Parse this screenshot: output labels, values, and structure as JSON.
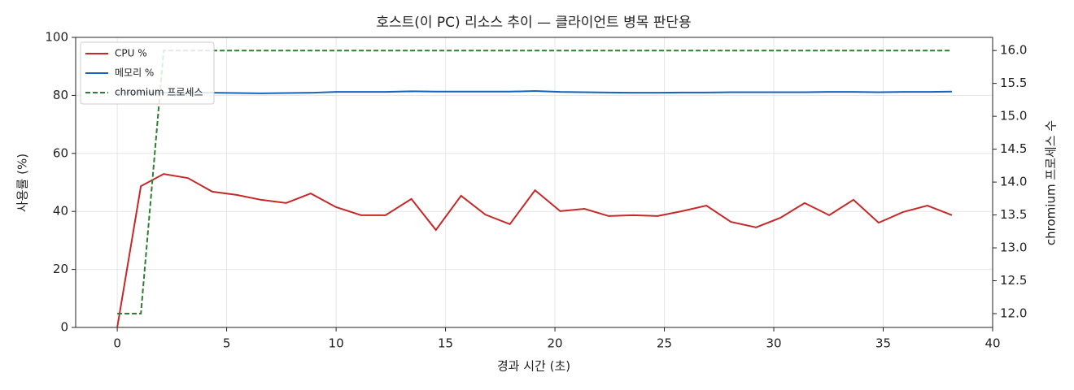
{
  "chart_data": {
    "type": "line",
    "title": "호스트(이 PC) 리소스 추이 — 클라이언트 병목 판단용",
    "xlabel": "경과 시간 (초)",
    "ylabel": "사용률 (%)",
    "y2label": "chromium 프로세스 수",
    "x": [
      0,
      1.08,
      2.12,
      3.23,
      4.34,
      5.46,
      6.57,
      7.72,
      8.84,
      9.99,
      11.14,
      12.26,
      13.44,
      14.56,
      15.71,
      16.82,
      17.94,
      19.09,
      20.24,
      21.35,
      22.46,
      23.58,
      24.69,
      25.81,
      26.92,
      28.04,
      29.19,
      30.3,
      31.41,
      32.53,
      33.64,
      34.79,
      35.91,
      37.02,
      38.14
    ],
    "series": [
      {
        "name": "CPU %",
        "color": "#c62828",
        "axis": "y",
        "values": [
          0,
          48.7,
          52.9,
          51.5,
          46.8,
          45.7,
          44.0,
          42.9,
          46.2,
          41.5,
          38.7,
          38.7,
          44.3,
          33.6,
          45.4,
          38.9,
          35.6,
          47.3,
          40.1,
          40.9,
          38.4,
          38.7,
          38.4,
          40.1,
          42.0,
          36.4,
          34.5,
          37.8,
          42.9,
          38.7,
          44.0,
          36.1,
          39.8,
          42.0,
          38.7
        ]
      },
      {
        "name": "메모리 %",
        "color": "#1565c0",
        "axis": "y",
        "values": [
          80.8,
          80.9,
          80.9,
          80.9,
          80.9,
          80.8,
          80.7,
          80.8,
          80.9,
          81.2,
          81.2,
          81.2,
          81.4,
          81.3,
          81.3,
          81.3,
          81.3,
          81.5,
          81.2,
          81.1,
          81.0,
          80.9,
          80.9,
          81.0,
          81.0,
          81.1,
          81.1,
          81.1,
          81.1,
          81.2,
          81.2,
          81.1,
          81.2,
          81.2,
          81.3
        ]
      },
      {
        "name": "chromium 프로세스",
        "color": "#2e7d32",
        "axis": "y2",
        "dashed": true,
        "values": [
          12,
          12,
          16,
          16,
          16,
          16,
          16,
          16,
          16,
          16,
          16,
          16,
          16,
          16,
          16,
          16,
          16,
          16,
          16,
          16,
          16,
          16,
          16,
          16,
          16,
          16,
          16,
          16,
          16,
          16,
          16,
          16,
          16,
          16,
          16
        ]
      }
    ],
    "xlim": [
      -1.9,
      40
    ],
    "xticks": [
      0,
      5,
      10,
      15,
      20,
      25,
      30,
      35,
      40
    ],
    "ylim": [
      0,
      100
    ],
    "yticks": [
      0,
      20,
      40,
      60,
      80,
      100
    ],
    "y2lim": [
      11.79,
      16.2
    ],
    "y2ticks": [
      {
        "value": 12,
        "label": "12.0"
      },
      {
        "value": 12.5,
        "label": "12.5"
      },
      {
        "value": 13,
        "label": "13.0"
      },
      {
        "value": 13.5,
        "label": "13.5"
      },
      {
        "value": 14,
        "label": "14.0"
      },
      {
        "value": 14.5,
        "label": "14.5"
      },
      {
        "value": 15,
        "label": "15.0"
      },
      {
        "value": 15.5,
        "label": "15.5"
      },
      {
        "value": 16,
        "label": "16.0"
      }
    ],
    "grid": true,
    "legend": "upper-left"
  }
}
